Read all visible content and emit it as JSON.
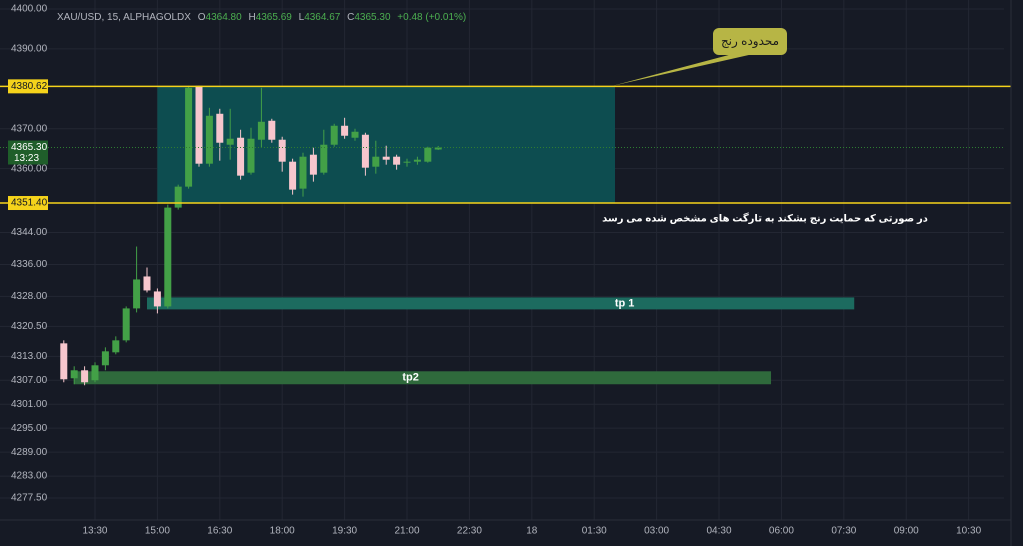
{
  "chart_data": {
    "type": "candlestick",
    "legend": {
      "symbol": "XAU/USD, 15, ALPHAGOLDX",
      "o_label": "O",
      "open": "4364.80",
      "h_label": "H",
      "high": "4365.69",
      "l_label": "L",
      "low": "4364.67",
      "c_label": "C",
      "close": "4365.30",
      "change": "+0.48 (+0.01%)"
    },
    "x": [
      765,
      780,
      795,
      810,
      825,
      840,
      855,
      870,
      885,
      900,
      915,
      930,
      945,
      960,
      975,
      990,
      1005,
      1020,
      1035,
      1050,
      1065,
      1080,
      1095,
      1110,
      1125,
      1140,
      1155,
      1170,
      1185,
      1200,
      1215,
      1230,
      1245,
      1260,
      1275,
      1290,
      1305
    ],
    "open": [
      4316.25,
      4307.5,
      4309.5,
      4307,
      4310.75,
      4314,
      4317,
      4325,
      4333,
      4329.25,
      4325.5,
      4350.25,
      4355.5,
      4380.75,
      4361.25,
      4373.75,
      4366,
      4367.75,
      4359,
      4367.25,
      4372,
      4367.25,
      4361.75,
      4355,
      4363.5,
      4359,
      4366,
      4370.75,
      4367.75,
      4368.5,
      4360.5,
      4363,
      4363,
      4361.5,
      4361.75,
      4361.75,
      4364.8
    ],
    "high": [
      4317,
      4310.5,
      4310.5,
      4311.5,
      4315.25,
      4318,
      4325.5,
      4340.5,
      4335.25,
      4330,
      4351,
      4356,
      4380.75,
      4380.75,
      4375.25,
      4375,
      4375,
      4369.75,
      4370.25,
      4380.25,
      4372.5,
      4368,
      4362.5,
      4364,
      4365.25,
      4369.75,
      4371.25,
      4372.75,
      4370,
      4369,
      4367,
      4365.75,
      4363.5,
      4362.5,
      4363,
      4365.5,
      4365.69
    ],
    "low": [
      4306.5,
      4306,
      4305.75,
      4306.5,
      4309.5,
      4313.5,
      4316.5,
      4324,
      4329,
      4323.75,
      4325,
      4349.75,
      4355,
      4360.5,
      4360.5,
      4362,
      4362.25,
      4357.25,
      4358.5,
      4365.25,
      4366.5,
      4359.25,
      4353.5,
      4353,
      4356.75,
      4358.5,
      4365.5,
      4367.5,
      4367,
      4358.25,
      4358.75,
      4361,
      4359.75,
      4360.5,
      4361,
      4361.5,
      4364.67
    ],
    "close": [
      4307.25,
      4309.5,
      4306.5,
      4310.75,
      4314.25,
      4317,
      4325,
      4332.25,
      4329.5,
      4325.5,
      4350.25,
      4355.5,
      4380.25,
      4361.25,
      4373.25,
      4366.5,
      4367.5,
      4358.25,
      4367.5,
      4371.75,
      4367.25,
      4361.75,
      4354.75,
      4363,
      4358.5,
      4366,
      4370.75,
      4368.25,
      4369.25,
      4360.25,
      4363,
      4362.25,
      4361,
      4361.75,
      4362.25,
      4365.25,
      4365.3
    ],
    "up_color": "#43a047",
    "down_color": "#f7c6cd",
    "xlim": [
      673,
      2121
    ],
    "xticks": [
      {
        "value": 810,
        "label": "13:30"
      },
      {
        "value": 900,
        "label": "15:00"
      },
      {
        "value": 990,
        "label": "16:30"
      },
      {
        "value": 1080,
        "label": "18:00"
      },
      {
        "value": 1170,
        "label": "19:30"
      },
      {
        "value": 1260,
        "label": "21:00"
      },
      {
        "value": 1350,
        "label": "22:30"
      },
      {
        "value": 1440,
        "label": "18"
      },
      {
        "value": 1530,
        "label": "01:30"
      },
      {
        "value": 1620,
        "label": "03:00"
      },
      {
        "value": 1710,
        "label": "04:30"
      },
      {
        "value": 1800,
        "label": "06:00"
      },
      {
        "value": 1890,
        "label": "07:30"
      },
      {
        "value": 1980,
        "label": "09:00"
      },
      {
        "value": 2070,
        "label": "10:30"
      }
    ],
    "ylim": [
      4272,
      4402.25
    ],
    "yticks": [
      {
        "value": 4400,
        "label": "4400.00"
      },
      {
        "value": 4390,
        "label": "4390.00"
      },
      {
        "value": 4370,
        "label": "4370.00"
      },
      {
        "value": 4360,
        "label": "4360.00"
      },
      {
        "value": 4344,
        "label": "4344.00"
      },
      {
        "value": 4336,
        "label": "4336.00"
      },
      {
        "value": 4328,
        "label": "4328.00"
      },
      {
        "value": 4320.5,
        "label": "4320.50"
      },
      {
        "value": 4313,
        "label": "4313.00"
      },
      {
        "value": 4307,
        "label": "4307.00"
      },
      {
        "value": 4301,
        "label": "4301.00"
      },
      {
        "value": 4295,
        "label": "4295.00"
      },
      {
        "value": 4289,
        "label": "4289.00"
      },
      {
        "value": 4283,
        "label": "4283.00"
      },
      {
        "value": 4277.5,
        "label": "4277.50"
      }
    ],
    "grid": true,
    "hlines": [
      {
        "value": 4380.62,
        "label": "4380.62"
      },
      {
        "value": 4351.4,
        "label": "4351.40"
      }
    ],
    "hline_color": "#f5d31b",
    "range_box": {
      "x0": 900,
      "x1": 1560,
      "color": "#0d4d50"
    },
    "targets": [
      {
        "label": "tp 1",
        "x0": 885,
        "x1": 1905,
        "top": 4327.75,
        "bottom": 4324.75,
        "color": "#1c6b5f"
      },
      {
        "label": "tp2",
        "x0": 780,
        "x1": 1785,
        "top": 4309.25,
        "bottom": 4306,
        "color": "#2f6a3c"
      }
    ],
    "last_price": {
      "value": 4365.3,
      "label": "4365.30",
      "countdown": "13:23"
    },
    "callout": "محدوده رنج",
    "annotation": "در صورتی که حمایت رنج بشکند به تارگت های مشخص شده می رسد"
  }
}
